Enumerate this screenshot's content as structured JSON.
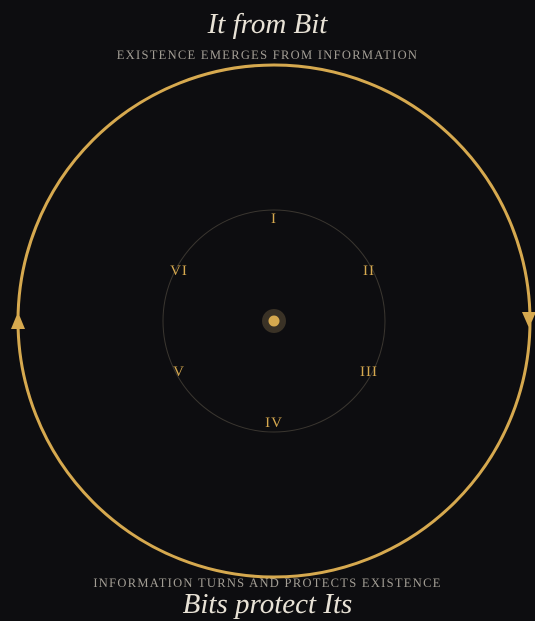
{
  "top": {
    "title": "It from Bit",
    "subtitle": "EXISTENCE EMERGES FROM INFORMATION"
  },
  "bottom": {
    "subtitle": "INFORMATION TURNS AND PROTECTS EXISTENCE",
    "title": "Bits protect Its"
  },
  "nodes": [
    "I",
    "II",
    "III",
    "IV",
    "V",
    "VI"
  ],
  "colors": {
    "background": "#0d0d10",
    "accent": "#d6a94f",
    "title_text": "#e8e2d6",
    "subtitle_text": "#a39e95",
    "inner_ring": "#3a3630"
  },
  "icons": {
    "right_arrow": "arrow-down-icon",
    "left_arrow": "arrow-up-icon",
    "center": "center-dot-icon"
  }
}
